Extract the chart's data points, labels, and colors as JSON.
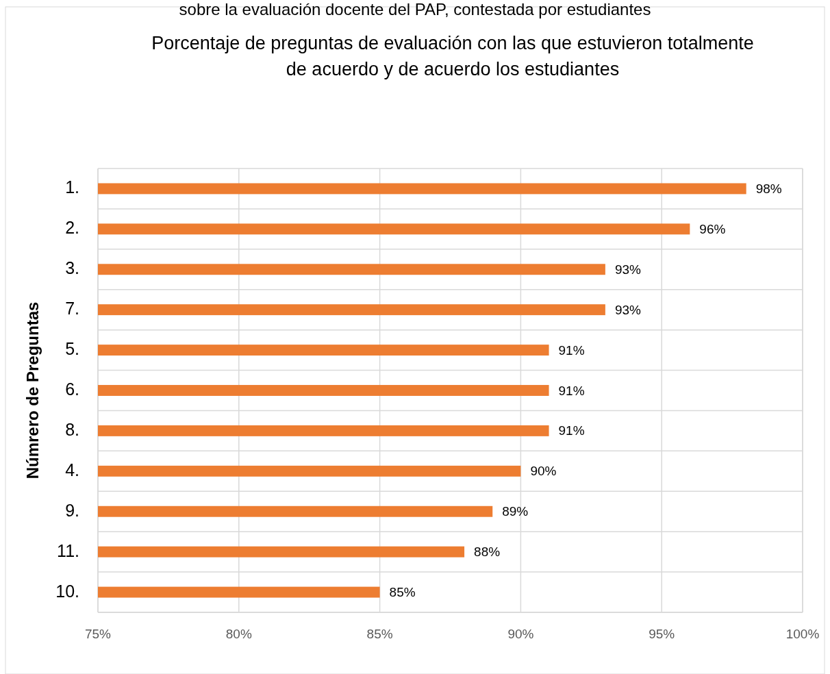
{
  "chart_data": {
    "type": "bar",
    "orientation": "horizontal",
    "title": "Porcentaje de preguntas de evaluación con las que estuvieron totalmente de acuerdo y de acuerdo los estudiantes",
    "ylabel": "Númrero de Preguntas",
    "annotations": [
      "sobre la evaluación docente del PAP, contestada por estudiantes"
    ],
    "categories": [
      "1.",
      "2.",
      "3.",
      "7.",
      "5.",
      "6.",
      "8.",
      "4.",
      "9.",
      "11.",
      "10."
    ],
    "values": [
      98,
      96,
      93,
      93,
      91,
      91,
      91,
      90,
      89,
      88,
      85
    ],
    "value_labels": [
      "98%",
      "96%",
      "93%",
      "93%",
      "91%",
      "91%",
      "91%",
      "90%",
      "89%",
      "88%",
      "85%"
    ],
    "color": "#ed7d31",
    "xlim": [
      75,
      100
    ],
    "xticks": [
      {
        "value": 75,
        "label": "75%"
      },
      {
        "value": 80,
        "label": "80%"
      },
      {
        "value": 85,
        "label": "85%"
      },
      {
        "value": 90,
        "label": "90%"
      },
      {
        "value": 95,
        "label": "95%"
      },
      {
        "value": 100,
        "label": "100%"
      }
    ],
    "grid": true
  }
}
